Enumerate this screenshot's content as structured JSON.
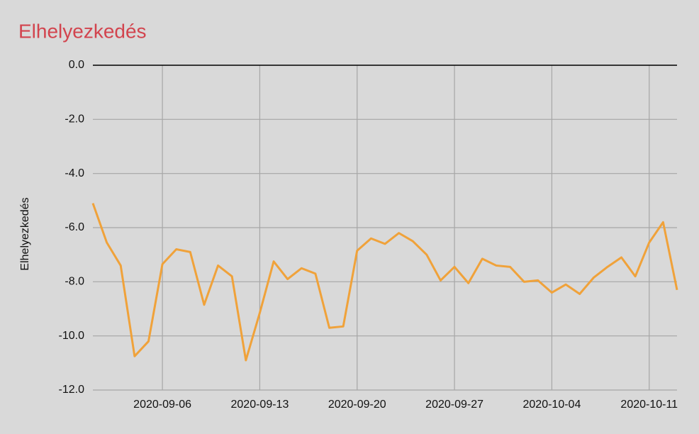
{
  "chart_data": {
    "type": "line",
    "title": "Elhelyezkedés",
    "y_label": "Elhelyezkedés",
    "x": [
      "2020-09-01",
      "2020-09-02",
      "2020-09-03",
      "2020-09-04",
      "2020-09-05",
      "2020-09-06",
      "2020-09-07",
      "2020-09-08",
      "2020-09-09",
      "2020-09-10",
      "2020-09-11",
      "2020-09-12",
      "2020-09-13",
      "2020-09-14",
      "2020-09-15",
      "2020-09-16",
      "2020-09-17",
      "2020-09-18",
      "2020-09-19",
      "2020-09-20",
      "2020-09-21",
      "2020-09-22",
      "2020-09-23",
      "2020-09-24",
      "2020-09-25",
      "2020-09-26",
      "2020-09-27",
      "2020-09-28",
      "2020-09-29",
      "2020-09-30",
      "2020-10-01",
      "2020-10-02",
      "2020-10-03",
      "2020-10-04",
      "2020-10-05",
      "2020-10-06",
      "2020-10-07",
      "2020-10-08",
      "2020-10-09",
      "2020-10-10",
      "2020-10-11",
      "2020-10-12",
      "2020-10-13"
    ],
    "series": [
      {
        "name": "Elhelyezkedés",
        "color": "#f0a23a",
        "values": [
          -5.1,
          -6.55,
          -7.4,
          -10.75,
          -10.2,
          -7.35,
          -6.8,
          -6.9,
          -8.85,
          -7.4,
          -7.8,
          -10.9,
          -9.15,
          -7.25,
          -7.9,
          -7.5,
          -7.7,
          -9.7,
          -9.65,
          -6.85,
          -6.4,
          -6.6,
          -6.2,
          -6.5,
          -7.0,
          -7.95,
          -7.45,
          -8.05,
          -7.15,
          -7.4,
          -7.45,
          -8.0,
          -7.95,
          -8.4,
          -8.1,
          -8.45,
          -7.85,
          -7.45,
          -7.1,
          -7.8,
          -6.55,
          -5.8,
          -8.3
        ]
      }
    ],
    "xlim": [
      "2020-09-01",
      "2020-10-13"
    ],
    "xticks": [
      "2020-09-06",
      "2020-09-13",
      "2020-09-20",
      "2020-09-27",
      "2020-10-04",
      "2020-10-11"
    ],
    "ylim": [
      -12,
      0
    ],
    "yticks": [
      {
        "value": 0,
        "label": "0.0"
      },
      {
        "value": -2,
        "label": "-2.0"
      },
      {
        "value": -4,
        "label": "-4.0"
      },
      {
        "value": -6,
        "label": "-6.0"
      },
      {
        "value": -8,
        "label": "-8.0"
      },
      {
        "value": -10,
        "label": "-10.0"
      },
      {
        "value": -12,
        "label": "-12.0"
      }
    ],
    "grid": true
  }
}
